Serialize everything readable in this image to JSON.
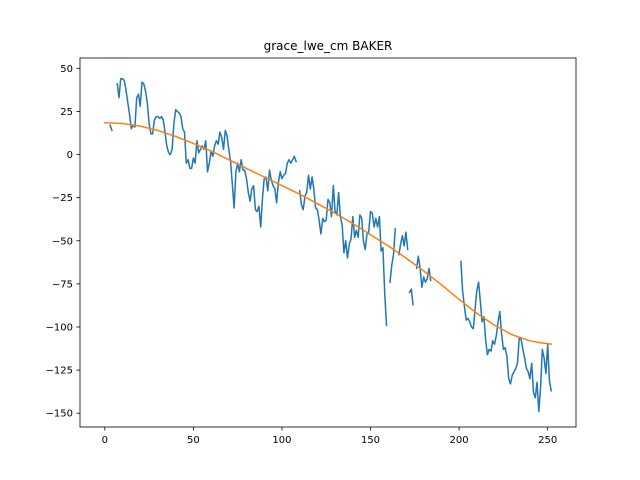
{
  "chart_data": {
    "type": "line",
    "title": "grace_lwe_cm BAKER",
    "xlabel": "",
    "ylabel": "",
    "xlim": [
      -14,
      266
    ],
    "ylim": [
      -158,
      56
    ],
    "xticks": [
      0,
      50,
      100,
      150,
      200,
      250
    ],
    "yticks": [
      50,
      25,
      0,
      -25,
      -50,
      -75,
      -100,
      -125,
      -150
    ],
    "grid": false,
    "series": [
      {
        "color": "#1f77b4",
        "points": [
          [
            3,
            17
          ],
          [
            4,
            14
          ],
          null,
          [
            7,
            41
          ],
          [
            8,
            33
          ],
          [
            9,
            44
          ],
          [
            10,
            44
          ],
          [
            11,
            43
          ],
          [
            12,
            37
          ],
          [
            13,
            30
          ],
          [
            14,
            23
          ],
          [
            15,
            15
          ],
          [
            16,
            17
          ],
          [
            17,
            16
          ],
          [
            18,
            33
          ],
          [
            19,
            35
          ],
          [
            20,
            28
          ],
          [
            21,
            42
          ],
          [
            22,
            41
          ],
          [
            23,
            37
          ],
          [
            24,
            30
          ],
          [
            25,
            18
          ],
          [
            26,
            12
          ],
          [
            27,
            12
          ],
          [
            28,
            20
          ],
          [
            29,
            22
          ],
          [
            30,
            22
          ],
          [
            31,
            21
          ],
          [
            32,
            22
          ],
          [
            33,
            20
          ],
          [
            34,
            13
          ],
          [
            35,
            5
          ],
          [
            36,
            1
          ],
          [
            37,
            0
          ],
          [
            38,
            3
          ],
          [
            39,
            18
          ],
          [
            40,
            26
          ],
          [
            41,
            25
          ],
          [
            42,
            24
          ],
          [
            43,
            22
          ],
          [
            44,
            15
          ],
          [
            45,
            13
          ],
          [
            46,
            -5
          ],
          [
            47,
            -3
          ],
          [
            48,
            -8
          ],
          [
            49,
            -8
          ],
          [
            50,
            -2
          ],
          [
            51,
            -5
          ],
          [
            52,
            8
          ],
          [
            53,
            1
          ],
          [
            54,
            3
          ],
          [
            55,
            5
          ],
          [
            56,
            3
          ],
          [
            57,
            8
          ],
          [
            58,
            -10
          ],
          [
            59,
            -5
          ],
          [
            60,
            2
          ],
          [
            61,
            -1
          ],
          [
            62,
            5
          ],
          [
            63,
            8
          ],
          [
            64,
            6
          ],
          [
            65,
            13
          ],
          [
            66,
            10
          ],
          [
            67,
            3
          ],
          [
            68,
            14
          ],
          [
            69,
            11
          ],
          [
            70,
            3
          ],
          [
            71,
            -4
          ],
          [
            72,
            -17
          ],
          [
            73,
            -31
          ],
          [
            74,
            -10
          ],
          [
            75,
            -5
          ],
          [
            76,
            -10
          ],
          [
            77,
            -3
          ],
          [
            78,
            -9
          ],
          [
            79,
            -9
          ],
          [
            80,
            -14
          ],
          [
            81,
            -22
          ],
          [
            82,
            -27
          ],
          [
            83,
            -20
          ],
          [
            84,
            -18
          ],
          [
            85,
            -32
          ],
          [
            86,
            -33
          ],
          [
            87,
            -30
          ],
          [
            88,
            -42
          ],
          [
            89,
            -25
          ],
          [
            90,
            -14
          ],
          [
            91,
            -13
          ],
          [
            92,
            -21
          ],
          [
            93,
            -9
          ],
          [
            94,
            -15
          ],
          [
            95,
            -18
          ],
          [
            96,
            -20
          ],
          [
            97,
            -28
          ],
          [
            98,
            -16
          ],
          [
            99,
            -10
          ],
          [
            100,
            -14
          ],
          [
            101,
            -12
          ],
          [
            102,
            -11
          ],
          [
            103,
            -5
          ],
          [
            104,
            -3
          ],
          [
            105,
            -5
          ],
          [
            106,
            -3
          ],
          [
            107,
            -1
          ],
          [
            108,
            -4
          ],
          null,
          [
            110,
            -21
          ],
          [
            111,
            -29
          ],
          [
            112,
            -32
          ],
          [
            113,
            -24
          ],
          [
            114,
            -22
          ],
          [
            115,
            -12
          ],
          [
            116,
            -20
          ],
          [
            117,
            -13
          ],
          [
            118,
            -20
          ],
          [
            119,
            -31
          ],
          [
            120,
            -32
          ],
          [
            121,
            -38
          ],
          [
            122,
            -46
          ],
          [
            123,
            -37
          ],
          [
            124,
            -39
          ],
          [
            125,
            -38
          ],
          [
            126,
            -26
          ],
          [
            127,
            -28
          ],
          [
            128,
            -36
          ],
          [
            129,
            -18
          ],
          [
            130,
            -33
          ],
          [
            131,
            -35
          ],
          [
            132,
            -22
          ],
          [
            133,
            -36
          ],
          [
            134,
            -41
          ],
          [
            135,
            -57
          ],
          [
            136,
            -50
          ],
          [
            137,
            -60
          ],
          [
            138,
            -52
          ],
          [
            139,
            -49
          ],
          [
            140,
            -36
          ],
          [
            141,
            -48
          ],
          [
            142,
            -44
          ],
          [
            143,
            -48
          ],
          [
            144,
            -35
          ],
          [
            145,
            -37
          ],
          [
            146,
            -50
          ],
          [
            147,
            -55
          ],
          [
            148,
            -46
          ],
          [
            149,
            -45
          ],
          [
            150,
            -33
          ],
          [
            151,
            -34
          ],
          [
            152,
            -42
          ],
          [
            153,
            -37
          ],
          [
            154,
            -42
          ],
          [
            155,
            -36
          ],
          [
            156,
            -56
          ],
          [
            157,
            -54
          ],
          [
            158,
            -80
          ],
          [
            159,
            -99
          ],
          null,
          [
            161,
            -74
          ],
          [
            162,
            -64
          ],
          [
            163,
            -58
          ],
          [
            164,
            -43
          ],
          null,
          [
            166,
            -58
          ],
          [
            167,
            -52
          ],
          [
            168,
            -47
          ],
          [
            169,
            -53
          ],
          [
            170,
            -45
          ],
          [
            171,
            -55
          ],
          null,
          [
            172,
            -80
          ],
          [
            173,
            -78
          ],
          [
            174,
            -87
          ],
          null,
          [
            176,
            -66
          ],
          [
            177,
            -59
          ],
          [
            178,
            -66
          ],
          [
            179,
            -77
          ],
          [
            180,
            -71
          ],
          [
            181,
            -74
          ],
          [
            182,
            -72
          ],
          [
            183,
            -66
          ],
          [
            184,
            -73
          ],
          null,
          [
            199,
            -96
          ],
          null,
          [
            201,
            -62
          ],
          [
            202,
            -79
          ],
          [
            203,
            -88
          ],
          [
            204,
            -96
          ],
          [
            205,
            -95
          ],
          [
            206,
            -97
          ],
          [
            207,
            -100
          ],
          [
            208,
            -101
          ],
          [
            209,
            -90
          ],
          [
            210,
            -79
          ],
          [
            211,
            -74
          ],
          [
            212,
            -85
          ],
          [
            213,
            -97
          ],
          [
            214,
            -94
          ],
          [
            215,
            -108
          ],
          [
            216,
            -116
          ],
          [
            217,
            -113
          ],
          [
            218,
            -114
          ],
          [
            219,
            -108
          ],
          [
            220,
            -110
          ],
          [
            221,
            -105
          ],
          [
            222,
            -97
          ],
          [
            223,
            -91
          ],
          [
            224,
            -104
          ],
          [
            225,
            -113
          ],
          [
            226,
            -112
          ],
          [
            227,
            -117
          ],
          [
            228,
            -130
          ],
          [
            229,
            -133
          ],
          [
            230,
            -128
          ],
          [
            231,
            -126
          ],
          [
            232,
            -124
          ],
          [
            233,
            -121
          ],
          [
            234,
            -106
          ],
          [
            235,
            -107
          ],
          [
            236,
            -113
          ],
          [
            237,
            -118
          ],
          [
            238,
            -124
          ],
          [
            239,
            -126
          ],
          [
            240,
            -130
          ],
          [
            241,
            -121
          ],
          [
            242,
            -138
          ],
          [
            243,
            -141
          ],
          [
            244,
            -132
          ],
          [
            245,
            -149
          ],
          [
            246,
            -135
          ],
          [
            247,
            -113
          ],
          [
            248,
            -118
          ],
          [
            249,
            -127
          ],
          [
            250,
            -110
          ],
          [
            251,
            -131
          ],
          [
            252,
            -137
          ]
        ]
      },
      {
        "color": "#ff7f0e",
        "points": [
          [
            0,
            18.5
          ],
          [
            10,
            18.0
          ],
          [
            20,
            16.5
          ],
          [
            30,
            14.0
          ],
          [
            40,
            10.5
          ],
          [
            50,
            6.5
          ],
          [
            60,
            2.0
          ],
          [
            70,
            -3.0
          ],
          [
            80,
            -8.0
          ],
          [
            90,
            -13.0
          ],
          [
            100,
            -18.0
          ],
          [
            110,
            -23.0
          ],
          [
            120,
            -28.5
          ],
          [
            130,
            -34.0
          ],
          [
            140,
            -40.0
          ],
          [
            150,
            -46.5
          ],
          [
            160,
            -53.0
          ],
          [
            170,
            -60.0
          ],
          [
            180,
            -67.5
          ],
          [
            190,
            -75.5
          ],
          [
            200,
            -84.0
          ],
          [
            210,
            -92.0
          ],
          [
            220,
            -99.0
          ],
          [
            230,
            -104.5
          ],
          [
            240,
            -108.0
          ],
          [
            245,
            -109.0
          ],
          [
            252,
            -110.0
          ]
        ]
      }
    ]
  }
}
